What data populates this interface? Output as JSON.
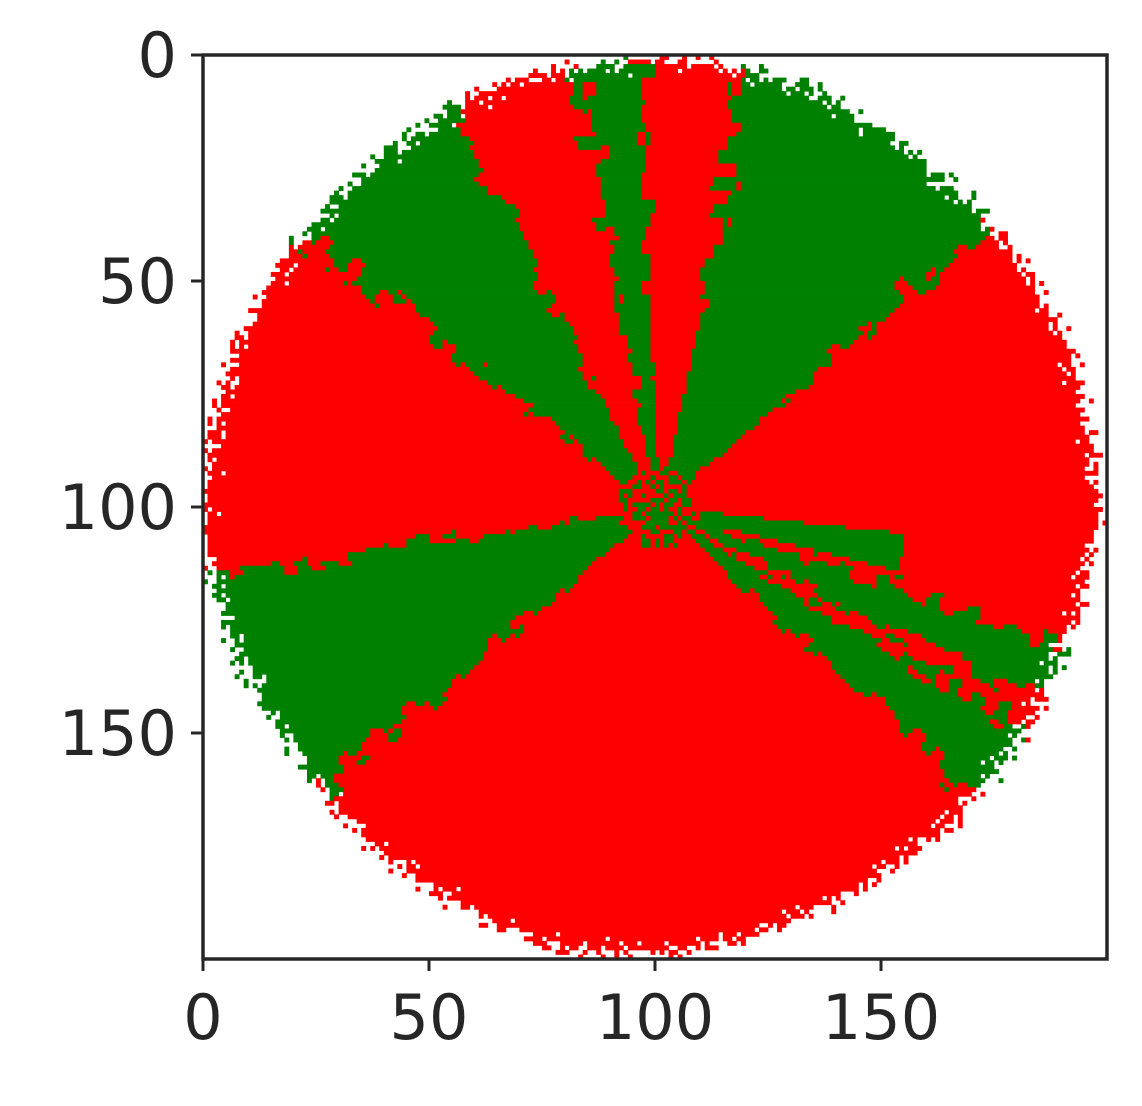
{
  "chart_data": {
    "type": "heatmap",
    "title": "",
    "xlabel": "",
    "ylabel": "",
    "xlim": [
      0,
      200
    ],
    "ylim": [
      200,
      0
    ],
    "y_axis_inverted": true,
    "grid": false,
    "colors": {
      "A": "#008000",
      "B": "#ff0000",
      "background": "#ffffff",
      "axes": "#262626"
    },
    "x_ticks": [
      0,
      50,
      100,
      150
    ],
    "y_ticks": [
      0,
      50,
      100,
      150
    ],
    "x_tick_labels": [
      "0",
      "50",
      "100",
      "150"
    ],
    "y_tick_labels": [
      "0",
      "50",
      "100",
      "150"
    ],
    "colony": {
      "center": [
        100,
        100
      ],
      "approx_radius": 97,
      "boundary_radius": [
        [
          0,
          98
        ],
        [
          20,
          95
        ],
        [
          45,
          95
        ],
        [
          70,
          96
        ],
        [
          100,
          100
        ],
        [
          125,
          98
        ],
        [
          150,
          97
        ],
        [
          170,
          100
        ],
        [
          200,
          100
        ],
        [
          225,
          99
        ],
        [
          255,
          100
        ],
        [
          280,
          100
        ],
        [
          310,
          97
        ],
        [
          335,
          98
        ],
        [
          360,
          98
        ]
      ],
      "sector_boundaries": [
        {
          "angle": 0,
          "type": "B"
        },
        {
          "angle": 18,
          "type": "A"
        },
        {
          "angle": 27,
          "type": "B"
        },
        {
          "angle": 31,
          "type": "A"
        },
        {
          "angle": 42,
          "type": "B"
        },
        {
          "angle": 140,
          "type": "A"
        },
        {
          "angle": 172,
          "type": "B"
        },
        {
          "angle": 218,
          "type": "A"
        },
        {
          "angle": 243,
          "type": "B"
        },
        {
          "angle": 260,
          "type": "A"
        },
        {
          "angle": 268,
          "type": "B"
        },
        {
          "angle": 282,
          "type": "A"
        },
        {
          "angle": 319,
          "type": "B"
        }
      ],
      "inner_streaks": [
        {
          "angle": 278,
          "r_start": 10,
          "r_end": 45,
          "type": "B"
        },
        {
          "angle": 10,
          "r_start": 10,
          "r_end": 55,
          "type": "A"
        }
      ]
    }
  }
}
